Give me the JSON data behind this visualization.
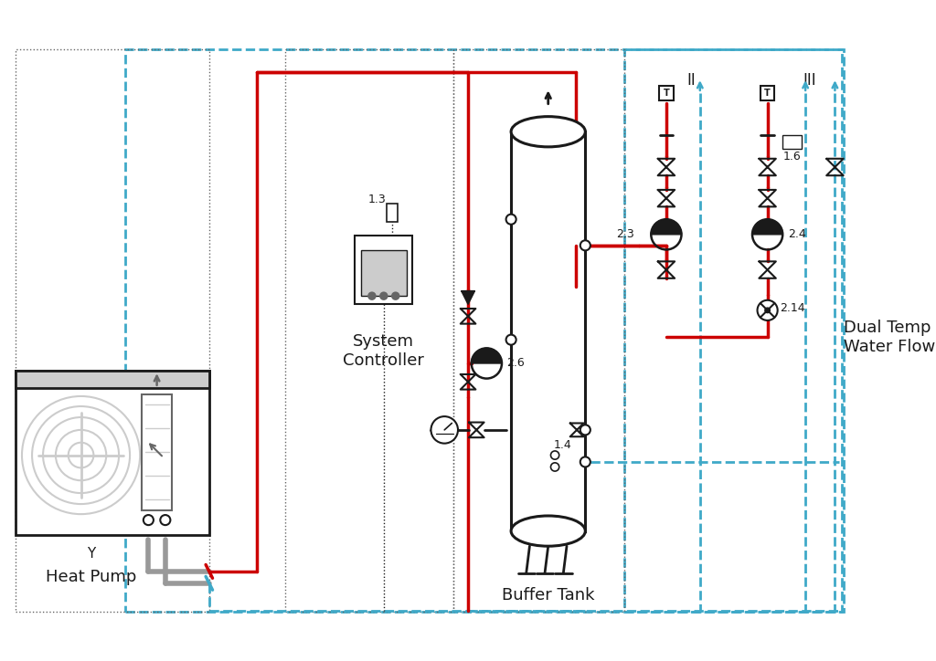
{
  "background_color": "#ffffff",
  "figsize": [
    10.24,
    7.24
  ],
  "dpi": 100,
  "labels": {
    "heat_pump": "Heat Pump",
    "system_controller": "System\nController",
    "buffer_tank": "Buffer Tank",
    "dual_temp": "Dual Temp\nWater Flow",
    "y_label": "Y",
    "c13": "1.3",
    "c14": "1.4",
    "c16": "1.6",
    "c23": "2.3",
    "c24": "2.4",
    "c26": "2.6",
    "c214": "2.14",
    "zoneII": "II",
    "zoneIII": "III"
  },
  "colors": {
    "red": "#cc0000",
    "blue": "#3fa9c8",
    "gray": "#999999",
    "black": "#1a1a1a",
    "white": "#ffffff",
    "lgray": "#cccccc",
    "dgray": "#666666"
  }
}
